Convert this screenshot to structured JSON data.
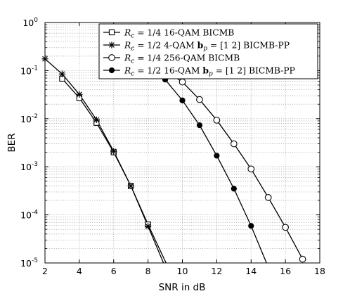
{
  "chart_data": {
    "type": "line",
    "title": "",
    "xlabel": "SNR in dB",
    "ylabel": "BER",
    "xlim": [
      2,
      18
    ],
    "ylim": [
      1e-05,
      1
    ],
    "yscale": "log",
    "grid": true,
    "legend_position": "top-right",
    "x_ticks": [
      "2",
      "4",
      "6",
      "8",
      "10",
      "12",
      "14",
      "16",
      "18"
    ],
    "y_ticks": [
      {
        "base": "10",
        "exp": "0"
      },
      {
        "base": "10",
        "exp": "-1"
      },
      {
        "base": "10",
        "exp": "-2"
      },
      {
        "base": "10",
        "exp": "-3"
      },
      {
        "base": "10",
        "exp": "-4"
      },
      {
        "base": "10",
        "exp": "-5"
      }
    ],
    "series": [
      {
        "name": "Rc = 1/4 16-QAM BICMB",
        "legend_parts": [
          {
            "t": "R",
            "s": "italic"
          },
          {
            "t": "c",
            "s": "sub"
          },
          {
            "t": " = 1/4 16-QAM BICMB",
            "s": "normal"
          }
        ],
        "marker": "square",
        "x": [
          3,
          4,
          5,
          6,
          7,
          8,
          9.05
        ],
        "y": [
          0.068,
          0.027,
          0.0082,
          0.002,
          0.0004,
          6.3e-05,
          1e-05
        ]
      },
      {
        "name": "Rc = 1/2 4-QAM bp = [1 2] BICMB-PP",
        "legend_parts": [
          {
            "t": "R",
            "s": "italic"
          },
          {
            "t": "c",
            "s": "sub"
          },
          {
            "t": " = 1/2 4-QAM ",
            "s": "normal"
          },
          {
            "t": "b",
            "s": "bold"
          },
          {
            "t": "p",
            "s": "sub"
          },
          {
            "t": " = [1 2] BICMB-PP",
            "s": "normal"
          }
        ],
        "marker": "star",
        "x": [
          2,
          3,
          4,
          5,
          6,
          7,
          8,
          8.9
        ],
        "y": [
          0.175,
          0.085,
          0.032,
          0.0095,
          0.0021,
          0.0004,
          5.8e-05,
          1e-05
        ]
      },
      {
        "name": "Rc = 1/4 256-QAM BICMB",
        "legend_parts": [
          {
            "t": "R",
            "s": "italic"
          },
          {
            "t": "c",
            "s": "sub"
          },
          {
            "t": " = 1/4 256-QAM BICMB",
            "s": "normal"
          }
        ],
        "marker": "circle-open",
        "x": [
          9,
          10,
          11,
          12,
          13,
          14,
          15,
          16,
          17
        ],
        "y": [
          0.1,
          0.058,
          0.025,
          0.0093,
          0.003,
          0.0009,
          0.00023,
          5.5e-05,
          1.2e-05
        ]
      },
      {
        "name": "Rc = 1/2 16-QAM bp = [1 2] BICMB-PP",
        "legend_parts": [
          {
            "t": "R",
            "s": "italic"
          },
          {
            "t": "c",
            "s": "sub"
          },
          {
            "t": " = 1/2 16-QAM ",
            "s": "normal"
          },
          {
            "t": "b",
            "s": "bold"
          },
          {
            "t": "p",
            "s": "sub"
          },
          {
            "t": " = [1 2] BICMB-PP",
            "s": "normal"
          }
        ],
        "marker": "circle-filled",
        "x": [
          9,
          10,
          11,
          12,
          13,
          14,
          14.9
        ],
        "y": [
          0.065,
          0.024,
          0.0073,
          0.0017,
          0.00035,
          5.9e-05,
          1e-05
        ]
      }
    ]
  }
}
